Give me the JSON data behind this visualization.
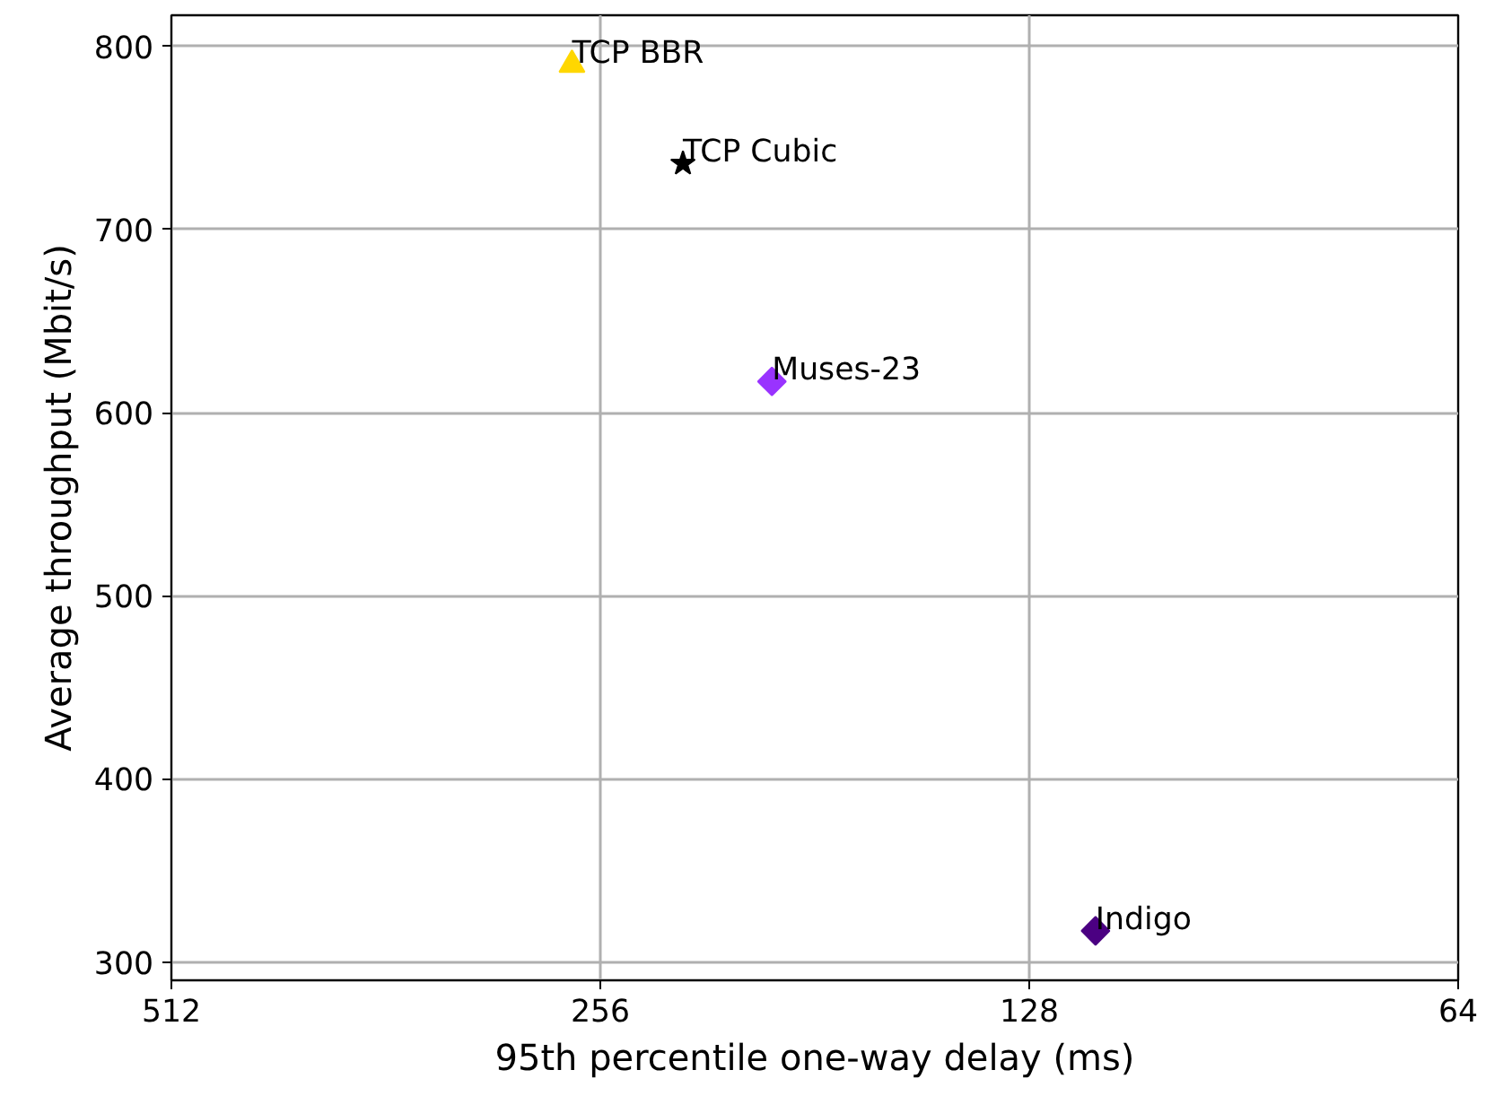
{
  "chart_data": {
    "type": "scatter",
    "xlabel": "95th percentile one-way delay (ms)",
    "ylabel": "Average throughput (Mbit/s)",
    "log": "x",
    "xlim": [
      512,
      64
    ],
    "xticks": [
      512,
      256,
      128,
      64
    ],
    "ylim": [
      290,
      817
    ],
    "yticks": [
      300,
      400,
      500,
      600,
      700,
      800
    ],
    "grid": true,
    "series": [
      {
        "name": "TCP BBR",
        "color": "#ffd700",
        "marker": "triangle",
        "x": [
          268
        ],
        "values": [
          790
        ]
      },
      {
        "name": "TCP Cubic",
        "color": "#000000",
        "marker": "star",
        "x": [
          224
        ],
        "values": [
          736
        ]
      },
      {
        "name": "Muses-23",
        "color": "#9933ff",
        "marker": "diamond",
        "x": [
          194
        ],
        "values": [
          617
        ]
      },
      {
        "name": "Indigo",
        "color": "#4b0082",
        "marker": "diamond",
        "x": [
          115
        ],
        "values": [
          317
        ]
      }
    ]
  }
}
